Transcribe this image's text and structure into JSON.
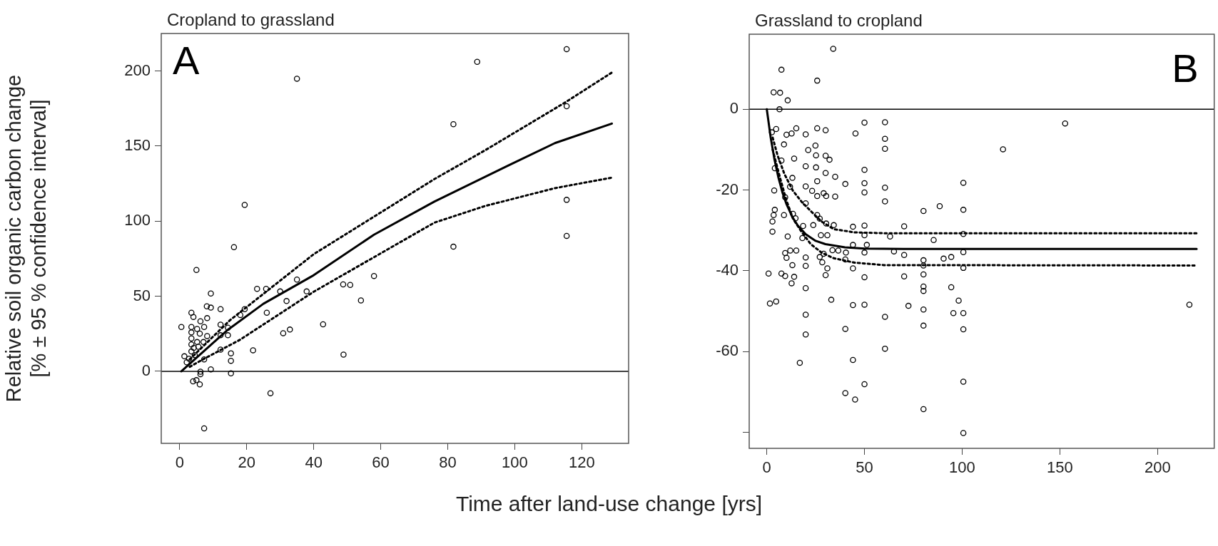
{
  "chart_data": [
    {
      "type": "scatter",
      "title": "Cropland to grassland",
      "ylabel": "Relative soil organic carbon change\n[% ± 95 % confidence interval]",
      "xlabel": "Time after land-use change [yrs]",
      "annotations": [
        "A"
      ],
      "xlim": [
        -5.5,
        134
      ],
      "xticks": [
        0,
        20,
        40,
        60,
        80,
        100,
        120
      ],
      "ylim": [
        -48,
        225
      ],
      "yticks": [
        0,
        50,
        100,
        150,
        200
      ],
      "grid": false,
      "legend": false,
      "ref_lines": [
        {
          "axis": "y",
          "value": 0,
          "color": "#000000"
        }
      ],
      "series": [
        {
          "marker": "circle",
          "color": "#000000",
          "x": [
            35.0,
            19.4,
            16.2,
            5.0,
            9.3,
            8.1,
            9.3,
            12.2,
            3.5,
            4.1,
            6.2,
            8.2,
            23.1,
            25.8,
            18.1,
            19.4,
            30.0,
            35.0,
            37.9,
            31.9,
            26.0,
            30.9,
            32.9,
            21.9,
            0.5,
            1.4,
            12.2,
            14.4,
            12.2,
            14.4,
            12.2,
            15.3,
            15.3,
            7.3,
            9.3,
            15.3,
            6.2,
            6.2,
            4.0,
            5.0,
            6.0,
            27.1,
            7.3,
            3.5,
            5.2,
            7.3,
            3.5,
            6.0,
            8.2,
            3.5,
            5.2,
            7.1,
            3.5,
            4.2,
            5.6,
            3.5,
            4.5,
            2.8,
            2.1,
            115.5,
            88.8,
            115.5,
            81.7,
            115.5,
            115.5,
            81.7,
            58.0,
            48.8,
            50.9,
            54.1,
            42.8,
            48.9
          ],
          "values": [
            194.9,
            110.8,
            82.7,
            67.5,
            51.8,
            43.3,
            42.4,
            41.4,
            39.0,
            36.2,
            33.3,
            35.4,
            54.9,
            54.9,
            37.5,
            41.4,
            53.2,
            61.1,
            53.2,
            46.8,
            39.0,
            25.4,
            27.8,
            14.0,
            29.5,
            10.0,
            31.1,
            29.0,
            24.0,
            24.0,
            14.4,
            12.0,
            7.0,
            7.9,
            1.3,
            -1.4,
            -0.3,
            -1.9,
            -6.7,
            -5.9,
            -8.7,
            -14.6,
            -38.0,
            29.5,
            28.2,
            29.5,
            25.9,
            25.1,
            23.5,
            21.9,
            19.5,
            19.5,
            17.9,
            15.6,
            16.3,
            13.2,
            10.8,
            8.4,
            6.0,
            214.6,
            206.1,
            176.6,
            164.6,
            114.2,
            90.2,
            83.0,
            63.5,
            57.9,
            57.5,
            47.2,
            31.3,
            11.1
          ]
        },
        {
          "type": "line",
          "color": "#000000",
          "line_style": "solid",
          "marker": "none",
          "x": [
            0.5,
            14,
            25,
            40,
            58,
            76,
            98,
            112,
            129
          ],
          "values": [
            0,
            27,
            45,
            64,
            91,
            113,
            137,
            152,
            165
          ]
        },
        {
          "type": "line",
          "color": "#000000",
          "line_style": "dotted",
          "marker": "none",
          "x": [
            3,
            15,
            40,
            76,
            91,
            115,
            129
          ],
          "values": [
            8,
            34,
            78,
            128,
            147,
            179,
            199
          ]
        },
        {
          "type": "line",
          "color": "#000000",
          "line_style": "dotted",
          "marker": "none",
          "x": [
            3,
            7,
            18,
            40,
            76,
            91,
            112,
            129
          ],
          "values": [
            3,
            8,
            21,
            53,
            99,
            110,
            122,
            129
          ]
        }
      ]
    },
    {
      "type": "scatter",
      "title": "Grassland to cropland",
      "annotations": [
        "B"
      ],
      "xlim": [
        -9,
        229
      ],
      "xticks": [
        0,
        50,
        100,
        150,
        200
      ],
      "ylim": [
        -84,
        18.6
      ],
      "yticks": [
        0,
        -20,
        -40,
        -60,
        {
          "value": -80,
          "label": null
        }
      ],
      "grid": false,
      "legend": false,
      "ref_lines": [
        {
          "axis": "y",
          "value": 0,
          "color": "#000000"
        }
      ],
      "series": [
        {
          "marker": "circle",
          "color": "#000000",
          "x": [
            34,
            25.8,
            7.5,
            3.5,
            6.8,
            10.7,
            6.5,
            4.8,
            2.6,
            10.1,
            12.7,
            15.1,
            19.9,
            25.8,
            30.1,
            8.8,
            21.2,
            24.9,
            25.2,
            14.0,
            30.1,
            32.1,
            19.9,
            25.2,
            30.1,
            35.0,
            40.2,
            25.8,
            19.9,
            23.2,
            25.8,
            29.1,
            30.4,
            35.0,
            3.8,
            7.5,
            4.1,
            13.1,
            11.9,
            9.4,
            19.9,
            4.1,
            3.5,
            2.9,
            2.9,
            8.8,
            13.4,
            14.7,
            18.6,
            18.2,
            25.8,
            27.1,
            23.8,
            30.4,
            34.3,
            27.7,
            31.0,
            44.1,
            50.0,
            50.0,
            51.2,
            44.1,
            50.0,
            10.7,
            9.4,
            12.0,
            15.1,
            10.1,
            19.9,
            27.1,
            29.1,
            33.6,
            36.6,
            40.5,
            40.2,
            28.4,
            19.9,
            13.1,
            31.0,
            44.1,
            30.1,
            0.9,
            7.5,
            9.4,
            14.0,
            12.7,
            50.0,
            19.9,
            1.6,
            4.8,
            33.0,
            44.1,
            50.0,
            19.9,
            19.9,
            40.2,
            60.5,
            60.5,
            16.9,
            44.1,
            50.0,
            40.2,
            45.2,
            45.4,
            50.0,
            50.0,
            50.0,
            50.0,
            60.5,
            60.5,
            60.5,
            60.5,
            60.5,
            152.7,
            120.9,
            100.6,
            100.6,
            80.2,
            88.5,
            70.3,
            100.6,
            85.4,
            63.1,
            65.1,
            70.3,
            80.2,
            80.2,
            80.2,
            90.5,
            94.4,
            100.6,
            100.6,
            70.3,
            94.4,
            80.2,
            80.2,
            98.2,
            72.5,
            80.2,
            95.5,
            100.6,
            80.2,
            100.6,
            100.6,
            80.2,
            100.6,
            216.3
          ],
          "values": [
            15,
            7.1,
            9.8,
            4.2,
            4.1,
            2.2,
            0,
            -4.9,
            -5.7,
            -6.3,
            -6.0,
            -4.7,
            -6.2,
            -4.7,
            -5.2,
            -8.7,
            -10.1,
            -9.0,
            -11.4,
            -12.2,
            -11.5,
            -12.5,
            -14.1,
            -14.4,
            -15.8,
            -16.7,
            -18.5,
            -17.8,
            -19.1,
            -20.2,
            -21.5,
            -20.8,
            -21.5,
            -21.6,
            -20.1,
            -12.7,
            -14.6,
            -17.0,
            -19.2,
            -21.8,
            -23.3,
            -24.9,
            -26.2,
            -27.8,
            -30.3,
            -26.2,
            -25.9,
            -27.0,
            -28.9,
            -31.9,
            -26.2,
            -27.1,
            -28.7,
            -28.3,
            -28.7,
            -31.2,
            -31.2,
            -29.1,
            -28.8,
            -31.2,
            -33.6,
            -33.6,
            -35.5,
            -31.5,
            -35.6,
            -35.0,
            -35.0,
            -36.8,
            -36.7,
            -36.6,
            -35.8,
            -34.9,
            -35.0,
            -35.5,
            -37.2,
            -37.9,
            -38.8,
            -38.6,
            -39.4,
            -39.4,
            -41.1,
            -40.7,
            -40.7,
            -41.3,
            -41.5,
            -43.1,
            -41.6,
            -44.3,
            -48.1,
            -47.6,
            -47.2,
            -48.5,
            -48.4,
            -50.9,
            -55.8,
            -54.4,
            -51.4,
            -59.3,
            -62.8,
            -62.1,
            -68.1,
            -70.3,
            -71.9,
            -6.0,
            -3.3,
            -15.0,
            -18.3,
            -20.6,
            -3.2,
            -7.3,
            -9.8,
            -19.4,
            -22.8,
            -3.5,
            -9.9,
            -18.2,
            -24.9,
            -25.2,
            -24.0,
            -29.0,
            -30.9,
            -32.4,
            -31.5,
            -35.2,
            -36.1,
            -37.4,
            -38.7,
            -40.9,
            -37.0,
            -36.6,
            -35.4,
            -39.3,
            -41.4,
            -44.1,
            -43.9,
            -45.0,
            -47.4,
            -48.7,
            -49.6,
            -50.5,
            -50.5,
            -53.6,
            -54.5,
            -67.5,
            -74.3,
            -80.2,
            -48.4
          ]
        },
        {
          "type": "line",
          "color": "#000000",
          "line_style": "solid",
          "marker": "none",
          "x": [
            0,
            2,
            4,
            6,
            8,
            10,
            13,
            16,
            20,
            25,
            30,
            40,
            50,
            70,
            220
          ],
          "values": [
            0,
            -7,
            -12.6,
            -17,
            -20.6,
            -23.4,
            -26.6,
            -28.9,
            -31,
            -32.6,
            -33.4,
            -34.2,
            -34.5,
            -34.6,
            -34.6
          ]
        },
        {
          "type": "line",
          "color": "#000000",
          "line_style": "dotted",
          "marker": "none",
          "x": [
            3,
            5.5,
            9,
            13.4,
            18,
            22.5,
            28,
            34.3,
            45,
            60,
            220
          ],
          "values": [
            -7,
            -11.4,
            -16,
            -20.2,
            -23,
            -25.2,
            -27.8,
            -29.7,
            -30.5,
            -30.7,
            -30.7
          ]
        },
        {
          "type": "line",
          "color": "#000000",
          "line_style": "dotted",
          "marker": "none",
          "x": [
            3,
            6.8,
            10,
            13.4,
            18,
            22.5,
            28,
            34.3,
            45,
            60,
            220
          ],
          "values": [
            -10,
            -17,
            -22.5,
            -27.1,
            -30.5,
            -33.4,
            -35.5,
            -36.9,
            -38,
            -38.6,
            -38.7
          ]
        }
      ]
    }
  ]
}
